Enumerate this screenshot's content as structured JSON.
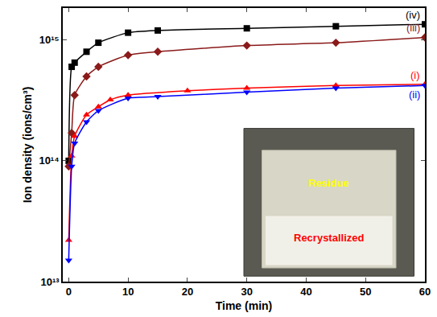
{
  "chart_data": {
    "type": "line",
    "x_label": "Time (min)",
    "y_label": "Ion density (ions/cm³)",
    "log": "y",
    "grid": false,
    "line_style": "solid",
    "xlim": [
      -1,
      60
    ],
    "xticks": [
      0,
      10,
      20,
      30,
      40,
      50,
      60
    ],
    "ylim": [
      10000000000000.0,
      1840000000000000.0
    ],
    "yticks": [
      {
        "value": 10000000000000.0,
        "label": "10¹³"
      },
      {
        "value": 100000000000000.0,
        "label": "10¹⁴"
      },
      {
        "value": 1000000000000000.0,
        "label": "10¹⁵"
      }
    ],
    "series": [
      {
        "name": "(iv)",
        "color": "#000000",
        "marker": "square",
        "x": [
          0,
          0.5,
          1,
          3,
          5,
          10,
          15,
          30,
          45,
          60
        ],
        "values": [
          100000000000000.0,
          600000000000000.0,
          650000000000000.0,
          800000000000000.0,
          950000000000000.0,
          1150000000000000.0,
          1200000000000000.0,
          1250000000000000.0,
          1300000000000000.0,
          1350000000000000.0
        ]
      },
      {
        "name": "(iii)",
        "color": "#8b1a1a",
        "marker": "diamond",
        "x": [
          0,
          0.5,
          1,
          3,
          5,
          10,
          15,
          30,
          45,
          60
        ],
        "values": [
          90000000000000.0,
          170000000000000.0,
          350000000000000.0,
          500000000000000.0,
          600000000000000.0,
          750000000000000.0,
          800000000000000.0,
          900000000000000.0,
          950000000000000.0,
          1050000000000000.0
        ]
      },
      {
        "name": "(i)",
        "color": "#ff0000",
        "marker": "triangle-up",
        "x": [
          0,
          0.5,
          1,
          3,
          5,
          7,
          10,
          20,
          30,
          45,
          60
        ],
        "values": [
          22000000000000.0,
          110000000000000.0,
          160000000000000.0,
          240000000000000.0,
          280000000000000.0,
          320000000000000.0,
          350000000000000.0,
          380000000000000.0,
          400000000000000.0,
          420000000000000.0,
          430000000000000.0
        ]
      },
      {
        "name": "(ii)",
        "color": "#0000ff",
        "marker": "triangle-down",
        "x": [
          0,
          0.5,
          1,
          3,
          5,
          10,
          15,
          30,
          45,
          60
        ],
        "values": [
          15000000000000.0,
          90000000000000.0,
          140000000000000.0,
          210000000000000.0,
          260000000000000.0,
          330000000000000.0,
          340000000000000.0,
          370000000000000.0,
          400000000000000.0,
          420000000000000.0
        ]
      }
    ],
    "annotations": [
      {
        "text": "Residue",
        "color": "#ffff00"
      },
      {
        "text": "Recrystallized",
        "color": "#ff0000"
      }
    ]
  }
}
